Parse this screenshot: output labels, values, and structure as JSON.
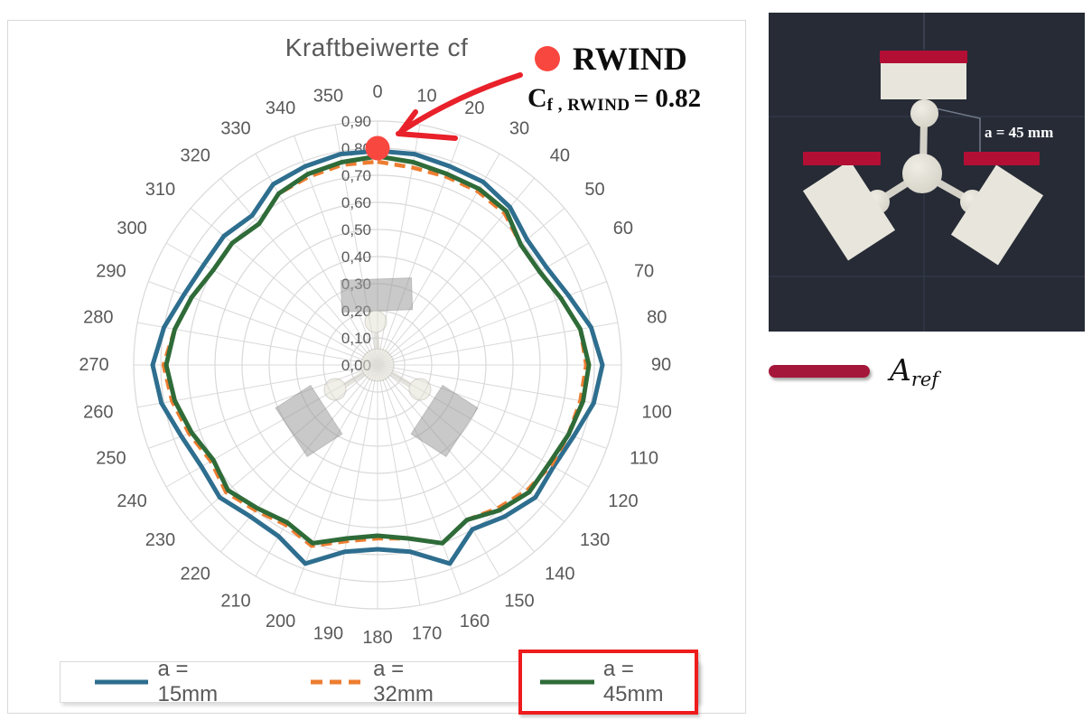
{
  "chart": {
    "title": "Kraftbeiwerte cf",
    "text_color": "#595959",
    "grid_color": "#d9d9d9",
    "legend": {
      "items": [
        {
          "label": "a = 15mm"
        },
        {
          "label": "a = 32mm"
        },
        {
          "label": "a = 45mm",
          "highlighted": true
        }
      ],
      "highlight_color": "#ee1c1c"
    }
  },
  "chart_data": {
    "type": "line",
    "subtype": "polar-radar",
    "title": "Kraftbeiwerte cf",
    "rlim": [
      0,
      0.9
    ],
    "grid": true,
    "legend_position": "bottom",
    "angles_deg": [
      0,
      10,
      20,
      30,
      40,
      50,
      60,
      70,
      80,
      90,
      100,
      110,
      120,
      130,
      140,
      150,
      160,
      170,
      180,
      190,
      200,
      210,
      220,
      230,
      240,
      250,
      260,
      270,
      280,
      290,
      300,
      310,
      320,
      330,
      340,
      350
    ],
    "angle_tick_labels": [
      "0",
      "10",
      "20",
      "30",
      "40",
      "50",
      "60",
      "70",
      "80",
      "90",
      "100",
      "110",
      "120",
      "130",
      "140",
      "150",
      "160",
      "170",
      "180",
      "190",
      "200",
      "210",
      "220",
      "230",
      "240",
      "250",
      "260",
      "270",
      "280",
      "290",
      "300",
      "310",
      "320",
      "330",
      "340",
      "350"
    ],
    "radial_tick_labels": [
      "0,00",
      "0,10",
      "0,20",
      "0,30",
      "0,40",
      "0,50",
      "0,60",
      "0,70",
      "0,80",
      "0,90"
    ],
    "series": [
      {
        "name": "a = 15mm",
        "color": "#2e6e8f",
        "style": "solid",
        "values": [
          0.79,
          0.79,
          0.78,
          0.78,
          0.76,
          0.72,
          0.72,
          0.75,
          0.8,
          0.83,
          0.81,
          0.77,
          0.75,
          0.76,
          0.73,
          0.7,
          0.78,
          0.7,
          0.68,
          0.7,
          0.78,
          0.73,
          0.73,
          0.76,
          0.75,
          0.77,
          0.81,
          0.83,
          0.8,
          0.76,
          0.74,
          0.74,
          0.72,
          0.77,
          0.78,
          0.79
        ]
      },
      {
        "name": "a = 32mm",
        "color": "#ed7d31",
        "style": "dashed",
        "values": [
          0.75,
          0.74,
          0.74,
          0.74,
          0.73,
          0.69,
          0.69,
          0.72,
          0.76,
          0.77,
          0.76,
          0.75,
          0.74,
          0.72,
          0.69,
          0.66,
          0.7,
          0.65,
          0.64,
          0.66,
          0.71,
          0.68,
          0.7,
          0.73,
          0.71,
          0.74,
          0.77,
          0.79,
          0.76,
          0.73,
          0.7,
          0.7,
          0.68,
          0.73,
          0.74,
          0.75
        ]
      },
      {
        "name": "a = 45mm",
        "color": "#2e6b38",
        "style": "solid",
        "values": [
          0.77,
          0.76,
          0.75,
          0.75,
          0.74,
          0.69,
          0.69,
          0.72,
          0.76,
          0.78,
          0.77,
          0.75,
          0.73,
          0.73,
          0.7,
          0.66,
          0.7,
          0.65,
          0.63,
          0.65,
          0.7,
          0.67,
          0.69,
          0.72,
          0.7,
          0.73,
          0.76,
          0.78,
          0.76,
          0.73,
          0.7,
          0.7,
          0.68,
          0.73,
          0.75,
          0.76
        ]
      }
    ],
    "annotation_point": {
      "label": "RWIND",
      "angle_deg": 0,
      "value": 0.82,
      "marker_r": 0.8,
      "color": "#f8473f"
    }
  },
  "annotation": {
    "title": "RWIND",
    "coeff_base": "C",
    "coeff_sub": "f , RWIND",
    "coeff_value": "= 0.82",
    "arrow_color": "#e8212a",
    "dot_color": "#f8473f"
  },
  "render_panel": {
    "background": "#262b36",
    "dimension_label": "a = 45 mm",
    "ref_area_color": "#b30f35"
  },
  "aref": {
    "base": "A",
    "sub": "ref",
    "bar_color": "#a5173a"
  }
}
